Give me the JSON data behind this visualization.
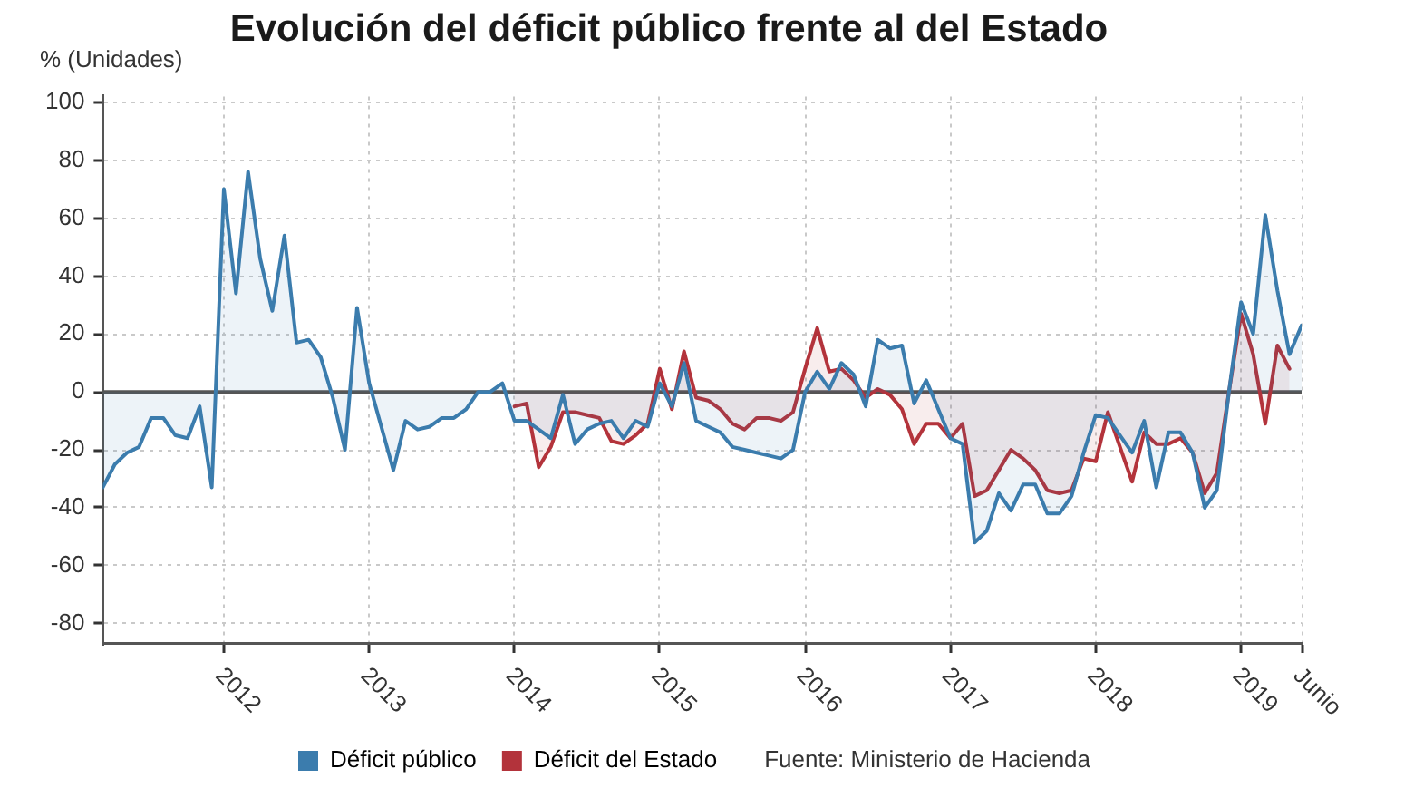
{
  "chart_data": {
    "type": "area",
    "title": "Evolución del déficit público frente al del Estado",
    "ylabel": "% (Unidades)",
    "x": [
      "2011-03",
      "2011-04",
      "2011-05",
      "2011-06",
      "2011-07",
      "2011-08",
      "2011-09",
      "2011-10",
      "2011-11",
      "2011-12",
      "2012-01",
      "2012-02",
      "2012-03",
      "2012-04",
      "2012-05",
      "2012-06",
      "2012-07",
      "2012-08",
      "2012-09",
      "2012-10",
      "2012-11",
      "2012-12",
      "2013-01",
      "2013-02",
      "2013-03",
      "2013-04",
      "2013-05",
      "2013-06",
      "2013-07",
      "2013-08",
      "2013-09",
      "2013-10",
      "2013-11",
      "2013-12",
      "2014-01",
      "2014-02",
      "2014-03",
      "2014-04",
      "2014-05",
      "2014-06",
      "2014-07",
      "2014-08",
      "2014-09",
      "2014-10",
      "2014-11",
      "2014-12",
      "2015-01",
      "2015-02",
      "2015-03",
      "2015-04",
      "2015-05",
      "2015-06",
      "2015-07",
      "2015-08",
      "2015-09",
      "2015-10",
      "2015-11",
      "2015-12",
      "2016-01",
      "2016-02",
      "2016-03",
      "2016-04",
      "2016-05",
      "2016-06",
      "2016-07",
      "2016-08",
      "2016-09",
      "2016-10",
      "2016-11",
      "2016-12",
      "2017-01",
      "2017-02",
      "2017-03",
      "2017-04",
      "2017-05",
      "2017-06",
      "2017-07",
      "2017-08",
      "2017-09",
      "2017-10",
      "2017-11",
      "2017-12",
      "2018-01",
      "2018-02",
      "2018-03",
      "2018-04",
      "2018-05",
      "2018-06",
      "2018-07",
      "2018-08",
      "2018-09",
      "2018-10",
      "2018-11",
      "2018-12",
      "2019-01",
      "2019-02",
      "2019-03",
      "2019-04",
      "2019-05",
      "2019-06"
    ],
    "series": [
      {
        "name": "Déficit público",
        "color": "#3b7cad",
        "values": [
          -33,
          -25,
          -21,
          -19,
          -9,
          -9,
          -15,
          -16,
          -5,
          -33,
          70,
          34,
          76,
          46,
          28,
          54,
          17,
          18,
          12,
          -2,
          -20,
          29,
          3,
          -12,
          -27,
          -10,
          -13,
          -12,
          -9,
          -9,
          -6,
          0,
          0,
          3,
          -10,
          -10,
          -13,
          -16,
          -1,
          -18,
          -13,
          -11,
          -10,
          -16,
          -10,
          -12,
          3,
          -5,
          10,
          -10,
          -12,
          -14,
          -19,
          -20,
          -21,
          -22,
          -23,
          -20,
          0,
          7,
          1,
          10,
          6,
          -5,
          18,
          15,
          16,
          -4,
          4,
          -6,
          -16,
          -18,
          -52,
          -48,
          -35,
          -41,
          -32,
          -32,
          -42,
          -42,
          -36,
          -21,
          -8,
          -9,
          -15,
          -21,
          -10,
          -33,
          -14,
          -14,
          -21,
          -40,
          -34,
          0,
          31,
          20,
          61,
          35,
          13,
          23
        ]
      },
      {
        "name": "Déficit del Estado",
        "color": "#b3333b",
        "values": [
          null,
          null,
          null,
          null,
          null,
          null,
          null,
          null,
          null,
          null,
          null,
          null,
          null,
          null,
          null,
          null,
          null,
          null,
          null,
          null,
          null,
          null,
          null,
          null,
          null,
          null,
          null,
          null,
          null,
          null,
          null,
          null,
          null,
          null,
          -5,
          -4,
          -26,
          -19,
          -7,
          -7,
          -8,
          -9,
          -17,
          -18,
          -15,
          -11,
          8,
          -6,
          14,
          -2,
          -3,
          -6,
          -11,
          -13,
          -9,
          -9,
          -10,
          -7,
          8,
          22,
          7,
          8,
          4,
          -2,
          1,
          -1,
          -6,
          -18,
          -11,
          -11,
          -16,
          -11,
          -36,
          -34,
          -27,
          -20,
          -23,
          -27,
          -34,
          -35,
          -34,
          -23,
          -24,
          -7,
          -19,
          -31,
          -14,
          -18,
          -18,
          -16,
          -21,
          -35,
          -28,
          0,
          27,
          13,
          -11,
          16,
          8,
          null
        ]
      }
    ],
    "xlim": [
      "2011-03",
      "2019-06"
    ],
    "xticks": [
      {
        "value": "2012-01",
        "label": "2012"
      },
      {
        "value": "2013-01",
        "label": "2013"
      },
      {
        "value": "2014-01",
        "label": "2014"
      },
      {
        "value": "2015-01",
        "label": "2015"
      },
      {
        "value": "2016-01",
        "label": "2016"
      },
      {
        "value": "2017-01",
        "label": "2017"
      },
      {
        "value": "2018-01",
        "label": "2018"
      },
      {
        "value": "2019-01",
        "label": "2019"
      },
      {
        "value": "2019-06",
        "label": "Junio"
      }
    ],
    "ylim": [
      -87,
      102
    ],
    "yticks": [
      -80,
      -60,
      -40,
      -20,
      0,
      20,
      40,
      60,
      80,
      100
    ],
    "ref_lines": [
      {
        "axis": "y",
        "value": 0,
        "color": "#555555"
      }
    ],
    "annotations": [
      "Fuente: Ministerio de Hacienda"
    ],
    "grid": true,
    "legend": "bottom"
  }
}
